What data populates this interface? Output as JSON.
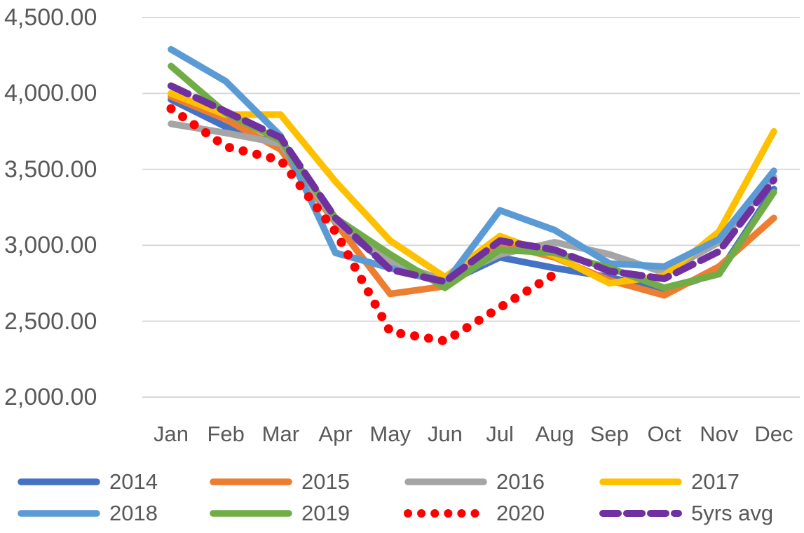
{
  "chart_data": {
    "type": "line",
    "title": "",
    "xlabel": "",
    "ylabel": "",
    "categories": [
      "Jan",
      "Feb",
      "Mar",
      "Apr",
      "May",
      "Jun",
      "Jul",
      "Aug",
      "Sep",
      "Oct",
      "Nov",
      "Dec"
    ],
    "y_axis": {
      "min": 2000,
      "max": 4500,
      "step": 500,
      "ticks": [
        {
          "value": 4500,
          "label": "4,500.00"
        },
        {
          "value": 4000,
          "label": "4,000.00"
        },
        {
          "value": 3500,
          "label": "3,500.00"
        },
        {
          "value": 3000,
          "label": "3,000.00"
        },
        {
          "value": 2500,
          "label": "2,500.00"
        },
        {
          "value": 2000,
          "label": "2,000.00"
        }
      ]
    },
    "grid": "horizontal",
    "legend_position": "bottom",
    "series": [
      {
        "name": "2014",
        "color": "#4472C4",
        "style": "solid",
        "values": [
          3960,
          3780,
          3660,
          3150,
          2860,
          2750,
          2920,
          2850,
          2790,
          2700,
          2820,
          3370
        ]
      },
      {
        "name": "2015",
        "color": "#ED7D31",
        "style": "solid",
        "values": [
          3980,
          3830,
          3630,
          3150,
          2680,
          2730,
          3010,
          2920,
          2770,
          2670,
          2860,
          3180
        ]
      },
      {
        "name": "2016",
        "color": "#A5A5A5",
        "style": "solid",
        "values": [
          3800,
          3740,
          3670,
          3160,
          2890,
          2770,
          2940,
          3020,
          2940,
          2820,
          3020,
          3450
        ]
      },
      {
        "name": "2017",
        "color": "#FFC000",
        "style": "solid",
        "values": [
          4000,
          3860,
          3860,
          3420,
          3030,
          2790,
          3060,
          2930,
          2750,
          2800,
          3090,
          3750
        ]
      },
      {
        "name": "2018",
        "color": "#5B9BD5",
        "style": "solid",
        "values": [
          4290,
          4080,
          3720,
          2950,
          2850,
          2750,
          3230,
          3100,
          2880,
          2860,
          3040,
          3490
        ]
      },
      {
        "name": "2019",
        "color": "#70AD47",
        "style": "solid",
        "values": [
          4180,
          3870,
          3690,
          3180,
          2940,
          2720,
          2970,
          2950,
          2850,
          2720,
          2810,
          3350
        ]
      },
      {
        "name": "2020",
        "color": "#FF0000",
        "style": "dotted",
        "values": [
          3900,
          3650,
          3560,
          3090,
          2430,
          2370,
          2590,
          2810,
          null,
          null,
          null,
          null
        ]
      },
      {
        "name": "5yrs avg",
        "color": "#7030A0",
        "style": "dashed",
        "values": [
          4050,
          3880,
          3710,
          3180,
          2840,
          2760,
          3030,
          2970,
          2830,
          2780,
          2960,
          3430
        ]
      }
    ]
  }
}
